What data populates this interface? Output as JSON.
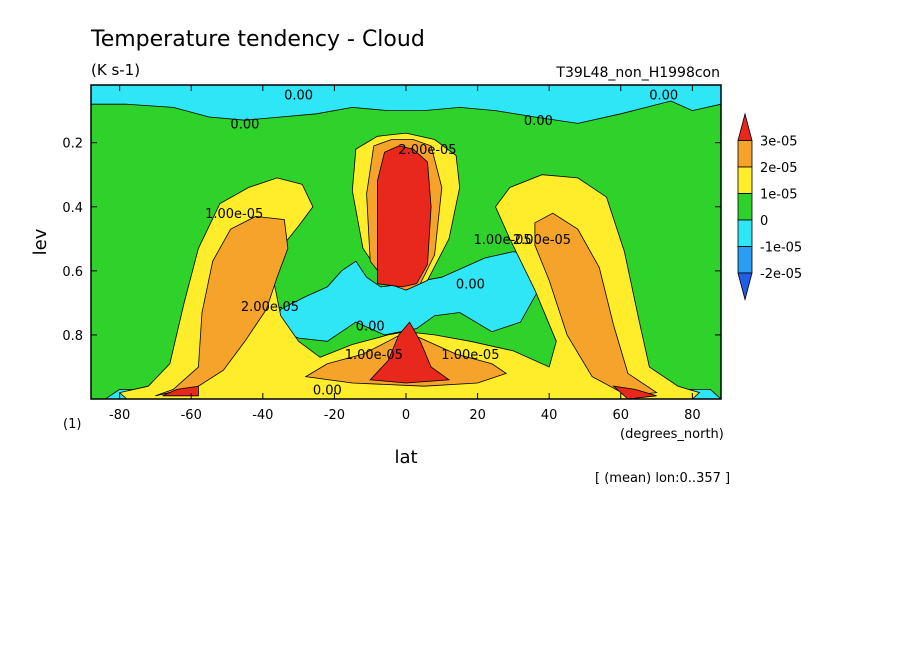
{
  "chart_data": {
    "type": "heatmap",
    "title": "Temperature tendency - Cloud",
    "units": "(K s-1)",
    "run_label": "T39L48_non_H1998con",
    "xlabel": "lat",
    "x_units": "(degrees_north)",
    "ylabel": "lev",
    "y_units": "(1)",
    "footer": "[ (mean) lon:0..357 ]",
    "xlim": [
      -88,
      88
    ],
    "ylim": [
      1.0,
      0.02
    ],
    "x_ticks": [
      -80,
      -60,
      -40,
      -20,
      0,
      20,
      40,
      60,
      80
    ],
    "x_tick_labels": [
      "-80",
      "-60",
      "-40",
      "-20",
      "0",
      "20",
      "40",
      "60",
      "80"
    ],
    "y_ticks": [
      0.2,
      0.4,
      0.6,
      0.8
    ],
    "y_tick_labels": [
      "0.2",
      "0.4",
      "0.6",
      "0.8"
    ],
    "colorbar": {
      "levels": [
        3e-05,
        2e-05,
        1e-05,
        0,
        -1e-05,
        -2e-05
      ],
      "labels": [
        "3e-05",
        "2e-05",
        "1e-05",
        "0",
        "-1e-05",
        "-2e-05"
      ],
      "colors": {
        "gt3e-05": "#e8271d",
        "2e-05_3e-05": "#f5a32a",
        "1e-05_2e-05": "#ffec2a",
        "0_1e-05": "#2ed22a",
        "-1e-05_0": "#2ee6f5",
        "-2e-05_-1e-05": "#2a9df5",
        "lt-2e-05": "#1f5fe8"
      }
    },
    "contour_labels": [
      {
        "text": "0.00",
        "lat": -30,
        "lev": 0.05
      },
      {
        "text": "0.00",
        "lat": 72,
        "lev": 0.05
      },
      {
        "text": "0.00",
        "lat": -45,
        "lev": 0.14
      },
      {
        "text": "0.00",
        "lat": 37,
        "lev": 0.13
      },
      {
        "text": "1.00e-05",
        "lat": -48,
        "lev": 0.42
      },
      {
        "text": "2.00e-05",
        "lat": -38,
        "lev": 0.71
      },
      {
        "text": "2.00e-05",
        "lat": 6,
        "lev": 0.22
      },
      {
        "text": "1.00e-05",
        "lat": 27,
        "lev": 0.5
      },
      {
        "text": "2.00e-05",
        "lat": 38,
        "lev": 0.5
      },
      {
        "text": "0.00",
        "lat": 18,
        "lev": 0.64
      },
      {
        "text": "0.00",
        "lat": -10,
        "lev": 0.77
      },
      {
        "text": "1.00e-05",
        "lat": -9,
        "lev": 0.86
      },
      {
        "text": "1.00e-05",
        "lat": 18,
        "lev": 0.86
      },
      {
        "text": "0.00",
        "lat": -22,
        "lev": 0.97
      }
    ],
    "regions": [
      {
        "value": 5e-06,
        "outline": [
          [
            -88,
            1.0
          ],
          [
            -88,
            0.02
          ],
          [
            88,
            0.02
          ],
          [
            88,
            1.0
          ]
        ]
      },
      {
        "value": -5e-06,
        "outline": [
          [
            -88,
            0.02
          ],
          [
            88,
            0.02
          ],
          [
            88,
            0.08
          ],
          [
            80,
            0.1
          ],
          [
            74,
            0.07
          ],
          [
            60,
            0.11
          ],
          [
            48,
            0.14
          ],
          [
            36,
            0.12
          ],
          [
            25,
            0.1
          ],
          [
            15,
            0.09
          ],
          [
            5,
            0.1
          ],
          [
            -5,
            0.1
          ],
          [
            -15,
            0.09
          ],
          [
            -25,
            0.11
          ],
          [
            -35,
            0.12
          ],
          [
            -45,
            0.13
          ],
          [
            -55,
            0.12
          ],
          [
            -65,
            0.09
          ],
          [
            -78,
            0.08
          ],
          [
            -88,
            0.08
          ]
        ]
      },
      {
        "value": -5e-06,
        "outline": [
          [
            -37,
            0.78
          ],
          [
            -35,
            0.72
          ],
          [
            -28,
            0.68
          ],
          [
            -22,
            0.65
          ],
          [
            -18,
            0.6
          ],
          [
            -14,
            0.57
          ],
          [
            -11,
            0.62
          ],
          [
            -7,
            0.65
          ],
          [
            0,
            0.64
          ],
          [
            10,
            0.62
          ],
          [
            22,
            0.56
          ],
          [
            30,
            0.54
          ],
          [
            38,
            0.56
          ],
          [
            38,
            0.64
          ],
          [
            32,
            0.76
          ],
          [
            24,
            0.79
          ],
          [
            15,
            0.73
          ],
          [
            8,
            0.74
          ],
          [
            3,
            0.78
          ],
          [
            -6,
            0.8
          ],
          [
            -14,
            0.76
          ],
          [
            -22,
            0.82
          ],
          [
            -30,
            0.81
          ]
        ]
      },
      {
        "value": -5e-06,
        "outline": [
          [
            -84,
            1.0
          ],
          [
            -80,
            0.97
          ],
          [
            -60,
            0.975
          ],
          [
            -40,
            0.97
          ],
          [
            -25,
            0.955
          ],
          [
            -15,
            0.97
          ],
          [
            0,
            0.985
          ],
          [
            15,
            0.97
          ],
          [
            30,
            0.96
          ],
          [
            50,
            0.965
          ],
          [
            70,
            0.97
          ],
          [
            85,
            0.97
          ],
          [
            88,
            1.0
          ]
        ]
      },
      {
        "value": 1.5e-05,
        "outline": [
          [
            -80,
            0.98
          ],
          [
            -72,
            0.96
          ],
          [
            -66,
            0.89
          ],
          [
            -62,
            0.7
          ],
          [
            -58,
            0.53
          ],
          [
            -52,
            0.39
          ],
          [
            -44,
            0.34
          ],
          [
            -36,
            0.31
          ],
          [
            -29,
            0.33
          ],
          [
            -26,
            0.4
          ],
          [
            -30,
            0.46
          ],
          [
            -35,
            0.53
          ],
          [
            -37,
            0.63
          ],
          [
            -35,
            0.74
          ],
          [
            -30,
            0.82
          ],
          [
            -24,
            0.87
          ],
          [
            -15,
            0.83
          ],
          [
            -5,
            0.8
          ],
          [
            0,
            0.79
          ],
          [
            8,
            0.8
          ],
          [
            18,
            0.82
          ],
          [
            30,
            0.85
          ],
          [
            40,
            0.9
          ],
          [
            42,
            0.82
          ],
          [
            36,
            0.66
          ],
          [
            29,
            0.5
          ],
          [
            25,
            0.4
          ],
          [
            29,
            0.34
          ],
          [
            38,
            0.3
          ],
          [
            48,
            0.31
          ],
          [
            56,
            0.37
          ],
          [
            61,
            0.54
          ],
          [
            65,
            0.75
          ],
          [
            68,
            0.9
          ],
          [
            76,
            0.96
          ],
          [
            82,
            0.98
          ],
          [
            80,
            1.0
          ],
          [
            -78,
            1.0
          ]
        ]
      },
      {
        "value": 1.5e-05,
        "outline": [
          [
            -12,
            0.53
          ],
          [
            -15,
            0.35
          ],
          [
            -14,
            0.22
          ],
          [
            -8,
            0.18
          ],
          [
            0,
            0.17
          ],
          [
            8,
            0.19
          ],
          [
            14,
            0.24
          ],
          [
            15,
            0.34
          ],
          [
            12,
            0.5
          ],
          [
            6,
            0.63
          ],
          [
            0,
            0.66
          ],
          [
            -6,
            0.63
          ]
        ]
      },
      {
        "value": 2.5e-05,
        "outline": [
          [
            -70,
            0.99
          ],
          [
            -65,
            0.97
          ],
          [
            -58,
            0.9
          ],
          [
            -57,
            0.73
          ],
          [
            -54,
            0.57
          ],
          [
            -49,
            0.47
          ],
          [
            -42,
            0.43
          ],
          [
            -34,
            0.44
          ],
          [
            -33,
            0.53
          ],
          [
            -36,
            0.62
          ],
          [
            -39,
            0.72
          ],
          [
            -45,
            0.82
          ],
          [
            -51,
            0.91
          ],
          [
            -58,
            0.96
          ]
        ]
      },
      {
        "value": 2.5e-05,
        "outline": [
          [
            -28,
            0.93
          ],
          [
            -22,
            0.89
          ],
          [
            -12,
            0.86
          ],
          [
            -5,
            0.82
          ],
          [
            0,
            0.79
          ],
          [
            6,
            0.82
          ],
          [
            14,
            0.86
          ],
          [
            24,
            0.89
          ],
          [
            28,
            0.92
          ],
          [
            20,
            0.95
          ],
          [
            5,
            0.96
          ],
          [
            -15,
            0.95
          ]
        ]
      },
      {
        "value": 2.5e-05,
        "outline": [
          [
            -10,
            0.57
          ],
          [
            -11,
            0.36
          ],
          [
            -9,
            0.21
          ],
          [
            -4,
            0.19
          ],
          [
            2,
            0.19
          ],
          [
            7,
            0.21
          ],
          [
            10,
            0.34
          ],
          [
            8,
            0.55
          ],
          [
            4,
            0.64
          ],
          [
            0,
            0.66
          ],
          [
            -5,
            0.64
          ]
        ]
      },
      {
        "value": 2.5e-05,
        "outline": [
          [
            36,
            0.45
          ],
          [
            41,
            0.42
          ],
          [
            48,
            0.47
          ],
          [
            54,
            0.59
          ],
          [
            58,
            0.77
          ],
          [
            62,
            0.92
          ],
          [
            70,
            0.98
          ],
          [
            62,
            0.99
          ],
          [
            52,
            0.93
          ],
          [
            45,
            0.8
          ],
          [
            40,
            0.63
          ],
          [
            36,
            0.52
          ]
        ]
      },
      {
        "value": 3.5e-05,
        "outline": [
          [
            -8,
            0.64
          ],
          [
            -8,
            0.32
          ],
          [
            -6,
            0.23
          ],
          [
            -2,
            0.21
          ],
          [
            2,
            0.22
          ],
          [
            6,
            0.26
          ],
          [
            7,
            0.4
          ],
          [
            6,
            0.58
          ],
          [
            3,
            0.64
          ],
          [
            -1,
            0.65
          ]
        ]
      },
      {
        "value": 3.5e-05,
        "outline": [
          [
            -10,
            0.94
          ],
          [
            -5,
            0.88
          ],
          [
            -2,
            0.8
          ],
          [
            1,
            0.76
          ],
          [
            4,
            0.82
          ],
          [
            7,
            0.9
          ],
          [
            12,
            0.94
          ],
          [
            0,
            0.95
          ]
        ]
      },
      {
        "value": 3.5e-05,
        "outline": [
          [
            -68,
            0.99
          ],
          [
            -64,
            0.97
          ],
          [
            -58,
            0.96
          ],
          [
            -58,
            0.99
          ]
        ]
      },
      {
        "value": 3.5e-05,
        "outline": [
          [
            58,
            0.96
          ],
          [
            64,
            0.97
          ],
          [
            70,
            0.99
          ],
          [
            62,
            1.0
          ]
        ]
      }
    ]
  }
}
